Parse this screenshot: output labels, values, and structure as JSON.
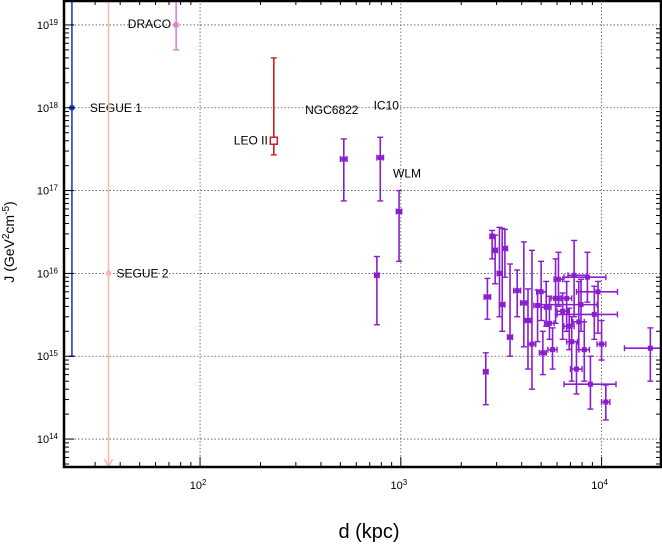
{
  "chart_data": {
    "type": "scatter",
    "x_scale": "log",
    "y_scale": "log",
    "xlim": [
      21,
      20000
    ],
    "ylim": [
      46000000000000.0,
      2e+19
    ],
    "grid": true,
    "xlabel": {
      "text": "d (kpc)"
    },
    "ylabel": {
      "prefix": "J (GeV",
      "sup1": "2",
      "mid": "cm",
      "sup2": "-5",
      "suffix": ")"
    },
    "x_ticks": [
      {
        "value": 100,
        "base": "10",
        "exp": "2"
      },
      {
        "value": 1000,
        "base": "10",
        "exp": "3"
      },
      {
        "value": 10000,
        "base": "10",
        "exp": "4"
      }
    ],
    "y_ticks": [
      {
        "value": 100000000000000.0,
        "base": "10",
        "exp": "14"
      },
      {
        "value": 1000000000000000.0,
        "base": "10",
        "exp": "15"
      },
      {
        "value": 1e+16,
        "base": "10",
        "exp": "16"
      },
      {
        "value": 1e+17,
        "base": "10",
        "exp": "17"
      },
      {
        "value": 1e+18,
        "base": "10",
        "exp": "18"
      },
      {
        "value": 1e+19,
        "base": "10",
        "exp": "19"
      }
    ],
    "colors": {
      "segue1": "#1f3fd0",
      "segue2": "#f7b8b8",
      "draco": "#e080d8",
      "leo2": "#cc2020",
      "dwarfs": "#8a1ecf",
      "grid": "#555555"
    },
    "named_points": [
      {
        "label": "SEGUE 1",
        "x": 23,
        "y": 1e+18,
        "ylo": 1000000000000000.0,
        "yhi": 2e+19,
        "color": "#1f3fd0",
        "marker": "dot"
      },
      {
        "label": "SEGUE 2",
        "x": 35,
        "y": 1e+16,
        "ylo": 46000000000000.0,
        "yhi": 2e+19,
        "color": "#f7b8b8",
        "marker": "dot",
        "arrow_down": true
      },
      {
        "label": "DRACO",
        "x": 76,
        "y": 1e+19,
        "ylo": 5e+18,
        "yhi": 2e+19,
        "color": "#e080d8",
        "marker": "square"
      },
      {
        "label": "LEO II",
        "x": 233,
        "y": 4e+17,
        "ylo": 2.7e+17,
        "yhi": 4e+18,
        "color": "#cc2020",
        "marker": "open-square"
      },
      {
        "label": "NGC6822",
        "x": 520,
        "y": 2.4e+17,
        "ylo": 7.5e+16,
        "yhi": 4.2e+17,
        "xlo": 500,
        "xhi": 540,
        "color": "#8a1ecf",
        "marker": "square"
      },
      {
        "label": "IC10",
        "x": 790,
        "y": 2.5e+17,
        "ylo": 7.5e+16,
        "yhi": 4.4e+17,
        "xlo": 760,
        "xhi": 820,
        "color": "#8a1ecf",
        "marker": "square"
      },
      {
        "label": "WLM",
        "x": 980,
        "y": 5.6e+16,
        "ylo": 1.4e+16,
        "yhi": 1e+17,
        "xlo": 950,
        "xhi": 1010,
        "color": "#8a1ecf",
        "marker": "square"
      },
      {
        "label": "",
        "x": 760,
        "y": 9500000000000000.0,
        "ylo": 2400000000000000.0,
        "yhi": 1.6e+16,
        "xlo": 740,
        "xhi": 780,
        "color": "#8a1ecf",
        "marker": "square"
      }
    ],
    "cloud_points": [
      [
        2650,
        650000000000000.0,
        260000000000000.0,
        1100000000000000.0,
        2580,
        2720
      ],
      [
        2700,
        5200000000000000.0,
        2800000000000000.0,
        8700000000000000.0,
        2600,
        2800
      ],
      [
        2850,
        2.8e+16,
        1.5e+16,
        3.3e+16,
        2780,
        2920
      ],
      [
        2950,
        1.9e+16,
        7500000000000000.0,
        2.9e+16,
        2880,
        3030
      ],
      [
        3100,
        1e+16,
        3000000000000000.0,
        3.6e+16,
        3020,
        3200
      ],
      [
        3200,
        4200000000000000.0,
        2000000000000000.0,
        3.5e+16,
        3100,
        3300
      ],
      [
        3300,
        2e+16,
        9000000000000000.0,
        3.4e+16,
        3200,
        3400
      ],
      [
        3500,
        1700000000000000.0,
        1000000000000000.0,
        1.3e+16,
        3400,
        3600
      ],
      [
        3800,
        6200000000000000.0,
        3000000000000000.0,
        1.1e+16,
        3650,
        3950
      ],
      [
        4100,
        4400000000000000.0,
        1300000000000000.0,
        2.4e+16,
        3950,
        4250
      ],
      [
        4300,
        2700000000000000.0,
        700000000000000.0,
        6500000000000000.0,
        4150,
        4450
      ],
      [
        4500,
        1400000000000000.0,
        400000000000000.0,
        1.9e+16,
        4300,
        4700
      ],
      [
        4800,
        4100000000000000.0,
        1500000000000000.0,
        6300000000000000.0,
        4600,
        5000
      ],
      [
        5000,
        6000000000000000.0,
        2700000000000000.0,
        1.4e+16,
        4750,
        5300
      ],
      [
        5100,
        1100000000000000.0,
        600000000000000.0,
        2000000000000000.0,
        4900,
        5300
      ],
      [
        5300,
        3900000000000000.0,
        2300000000000000.0,
        8000000000000000.0,
        5000,
        5600
      ],
      [
        5500,
        2500000000000000.0,
        1600000000000000.0,
        5300000000000000.0,
        5200,
        5800
      ],
      [
        5700,
        1200000000000000.0,
        700000000000000.0,
        2200000000000000.0,
        5400,
        6000
      ],
      [
        5900,
        5000000000000000.0,
        2500000000000000.0,
        1.5e+16,
        5600,
        6200
      ],
      [
        6100,
        8500000000000000.0,
        4000000000000000.0,
        1.8e+16,
        5800,
        6400
      ],
      [
        6400,
        3500000000000000.0,
        1600000000000000.0,
        5800000000000000.0,
        6000,
        6800
      ],
      [
        6700,
        5000000000000000.0,
        2000000000000000.0,
        8000000000000000.0,
        6300,
        7100
      ],
      [
        6900,
        2300000000000000.0,
        1200000000000000.0,
        3800000000000000.0,
        6500,
        7300
      ],
      [
        7100,
        1500000000000000.0,
        500000000000000.0,
        3000000000000000.0,
        6700,
        7600
      ],
      [
        7300,
        9500000000000000.0,
        3000000000000000.0,
        2.5e+16,
        6800,
        8500
      ],
      [
        7500,
        700000000000000.0,
        350000000000000.0,
        1500000000000000.0,
        7000,
        8000
      ],
      [
        7700,
        2600000000000000.0,
        1200000000000000.0,
        8000000000000000.0,
        7200,
        8200
      ],
      [
        7900,
        4200000000000000.0,
        2000000000000000.0,
        8500000000000000.0,
        5000,
        9500
      ],
      [
        8200,
        1200000000000000.0,
        500000000000000.0,
        2600000000000000.0,
        7700,
        8700
      ],
      [
        8500,
        9000000000000000.0,
        4500000000000000.0,
        1.8e+16,
        6500,
        10500
      ],
      [
        8800,
        460000000000000.0,
        230000000000000.0,
        1000000000000000.0,
        6500,
        11800
      ],
      [
        9200,
        3200000000000000.0,
        1600000000000000.0,
        7000000000000000.0,
        6000,
        12000
      ],
      [
        9600,
        6000000000000000.0,
        1900000000000000.0,
        8000000000000000.0,
        7500,
        12000
      ],
      [
        10000,
        1400000000000000.0,
        900000000000000.0,
        2700000000000000.0,
        9500,
        10500
      ],
      [
        10500,
        280000000000000.0,
        170000000000000.0,
        450000000000000.0,
        10000,
        11000
      ],
      [
        17500,
        1250000000000000.0,
        500000000000000.0,
        2200000000000000.0,
        13000,
        20000
      ]
    ]
  }
}
